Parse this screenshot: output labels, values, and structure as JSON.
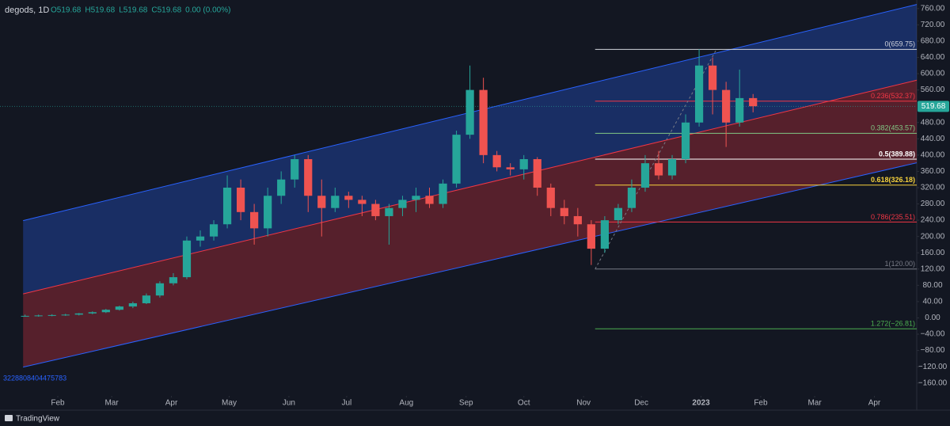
{
  "chart_data": {
    "type": "candlestick",
    "title": "degods, 1D",
    "ohlc_labels": [
      "O519.68",
      "H519.68",
      "L519.68",
      "C519.68",
      "0.00 (0.00%)"
    ],
    "footer": "TradingView",
    "corner_label": "3228808404475783",
    "xlim": [
      1,
      477
    ],
    "ylim": [
      -180,
      781
    ],
    "xticks": [
      {
        "value": 31,
        "label": "Feb"
      },
      {
        "value": 59,
        "label": "Mar"
      },
      {
        "value": 90,
        "label": "Apr"
      },
      {
        "value": 120,
        "label": "May"
      },
      {
        "value": 151,
        "label": "Jun"
      },
      {
        "value": 181,
        "label": "Jul"
      },
      {
        "value": 212,
        "label": "Aug"
      },
      {
        "value": 243,
        "label": "Sep"
      },
      {
        "value": 273,
        "label": "Oct"
      },
      {
        "value": 304,
        "label": "Nov"
      },
      {
        "value": 334,
        "label": "Dec"
      },
      {
        "value": 365,
        "label": "2023"
      },
      {
        "value": 396,
        "label": "Feb"
      },
      {
        "value": 424,
        "label": "Mar"
      },
      {
        "value": 455,
        "label": "Apr"
      }
    ],
    "yticks": [
      {
        "value": 760,
        "label": "760.00"
      },
      {
        "value": 720,
        "label": "720.00"
      },
      {
        "value": 680,
        "label": "680.00"
      },
      {
        "value": 640,
        "label": "640.00"
      },
      {
        "value": 600,
        "label": "600.00"
      },
      {
        "value": 560,
        "label": "560.00"
      },
      {
        "value": 480,
        "label": "480.00"
      },
      {
        "value": 440,
        "label": "440.00"
      },
      {
        "value": 400,
        "label": "400.00"
      },
      {
        "value": 360,
        "label": "360.00"
      },
      {
        "value": 320,
        "label": "320.00"
      },
      {
        "value": 280,
        "label": "280.00"
      },
      {
        "value": 240,
        "label": "240.00"
      },
      {
        "value": 200,
        "label": "200.00"
      },
      {
        "value": 160,
        "label": "160.00"
      },
      {
        "value": 120,
        "label": "120.00"
      },
      {
        "value": 80,
        "label": "80.00"
      },
      {
        "value": 40,
        "label": "40.00"
      },
      {
        "value": 0,
        "label": "0.00"
      },
      {
        "value": -40,
        "label": "−40.00"
      },
      {
        "value": -80,
        "label": "−80.00"
      },
      {
        "value": -120,
        "label": "−120.00"
      },
      {
        "value": -160,
        "label": "−160.00"
      }
    ],
    "last_price": 519.68,
    "up_color": "#26a69a",
    "down_color": "#ef5350",
    "x": [
      14,
      21,
      28,
      35,
      42,
      49,
      56,
      63,
      70,
      77,
      84,
      91,
      98,
      105,
      112,
      119,
      126,
      133,
      140,
      147,
      154,
      161,
      168,
      175,
      182,
      189,
      196,
      203,
      210,
      217,
      224,
      231,
      238,
      245,
      252,
      259,
      266,
      273,
      280,
      287,
      294,
      301,
      308,
      315,
      322,
      329,
      336,
      343,
      350,
      357,
      364,
      371,
      378,
      385,
      392
    ],
    "open": [
      5,
      5,
      6,
      7,
      8,
      11,
      14,
      20,
      28,
      36,
      55,
      85,
      100,
      190,
      200,
      230,
      320,
      260,
      220,
      300,
      340,
      390,
      300,
      270,
      300,
      290,
      280,
      250,
      270,
      290,
      300,
      280,
      330,
      450,
      560,
      400,
      370,
      365,
      390,
      320,
      270,
      250,
      230,
      170,
      240,
      270,
      320,
      380,
      350,
      390,
      480,
      620,
      560,
      480,
      540
    ],
    "high": [
      8,
      8,
      9,
      10,
      12,
      16,
      22,
      30,
      40,
      60,
      90,
      110,
      200,
      215,
      240,
      350,
      340,
      280,
      320,
      360,
      400,
      400,
      340,
      320,
      310,
      300,
      290,
      280,
      300,
      320,
      320,
      340,
      460,
      620,
      590,
      410,
      380,
      400,
      395,
      330,
      290,
      270,
      240,
      250,
      280,
      340,
      400,
      410,
      400,
      500,
      660,
      640,
      580,
      610,
      550
    ],
    "low": [
      3,
      3,
      4,
      5,
      6,
      9,
      12,
      18,
      24,
      34,
      50,
      80,
      95,
      175,
      190,
      220,
      240,
      180,
      200,
      280,
      320,
      260,
      200,
      260,
      270,
      250,
      240,
      180,
      250,
      260,
      270,
      270,
      320,
      440,
      380,
      360,
      350,
      340,
      300,
      250,
      230,
      200,
      130,
      160,
      230,
      260,
      310,
      340,
      340,
      380,
      470,
      500,
      420,
      470,
      505
    ],
    "close": [
      5,
      6,
      7,
      8,
      11,
      14,
      20,
      28,
      36,
      55,
      85,
      100,
      190,
      200,
      230,
      320,
      260,
      220,
      300,
      340,
      390,
      300,
      270,
      300,
      290,
      280,
      250,
      270,
      290,
      300,
      280,
      330,
      450,
      560,
      400,
      370,
      365,
      390,
      320,
      270,
      250,
      230,
      170,
      240,
      270,
      320,
      380,
      350,
      390,
      480,
      620,
      560,
      480,
      540,
      520
    ],
    "channel": {
      "x": [
        13,
        477
      ],
      "upper": [
        239,
        770
      ],
      "middle": [
        59,
        584
      ],
      "lower": [
        -121,
        381
      ],
      "upper_color": "#2962ff",
      "lower_color": "#f23645"
    },
    "fib": {
      "x": [
        310,
        477
      ],
      "anchor_x": [
        310,
        373
      ],
      "anchor_y": [
        120,
        659.75
      ],
      "levels": [
        {
          "value": 659.75,
          "label": "0(659.75)",
          "color": "#d1d4dc"
        },
        {
          "value": 532.37,
          "label": "0.236(532.37)",
          "color": "#f23645"
        },
        {
          "value": 453.57,
          "label": "0.382(453.57)",
          "color": "#81c784"
        },
        {
          "value": 389.88,
          "label": "0.5(389.88)",
          "color": "#ffffff"
        },
        {
          "value": 326.18,
          "label": "0.618(326.18)",
          "color": "#f7d23c"
        },
        {
          "value": 235.51,
          "label": "0.786(235.51)",
          "color": "#f23645"
        },
        {
          "value": 120.0,
          "label": "1(120.00)",
          "color": "#787b86"
        },
        {
          "value": -26.81,
          "label": "1.272(−26.81)",
          "color": "#4caf50"
        }
      ]
    }
  }
}
